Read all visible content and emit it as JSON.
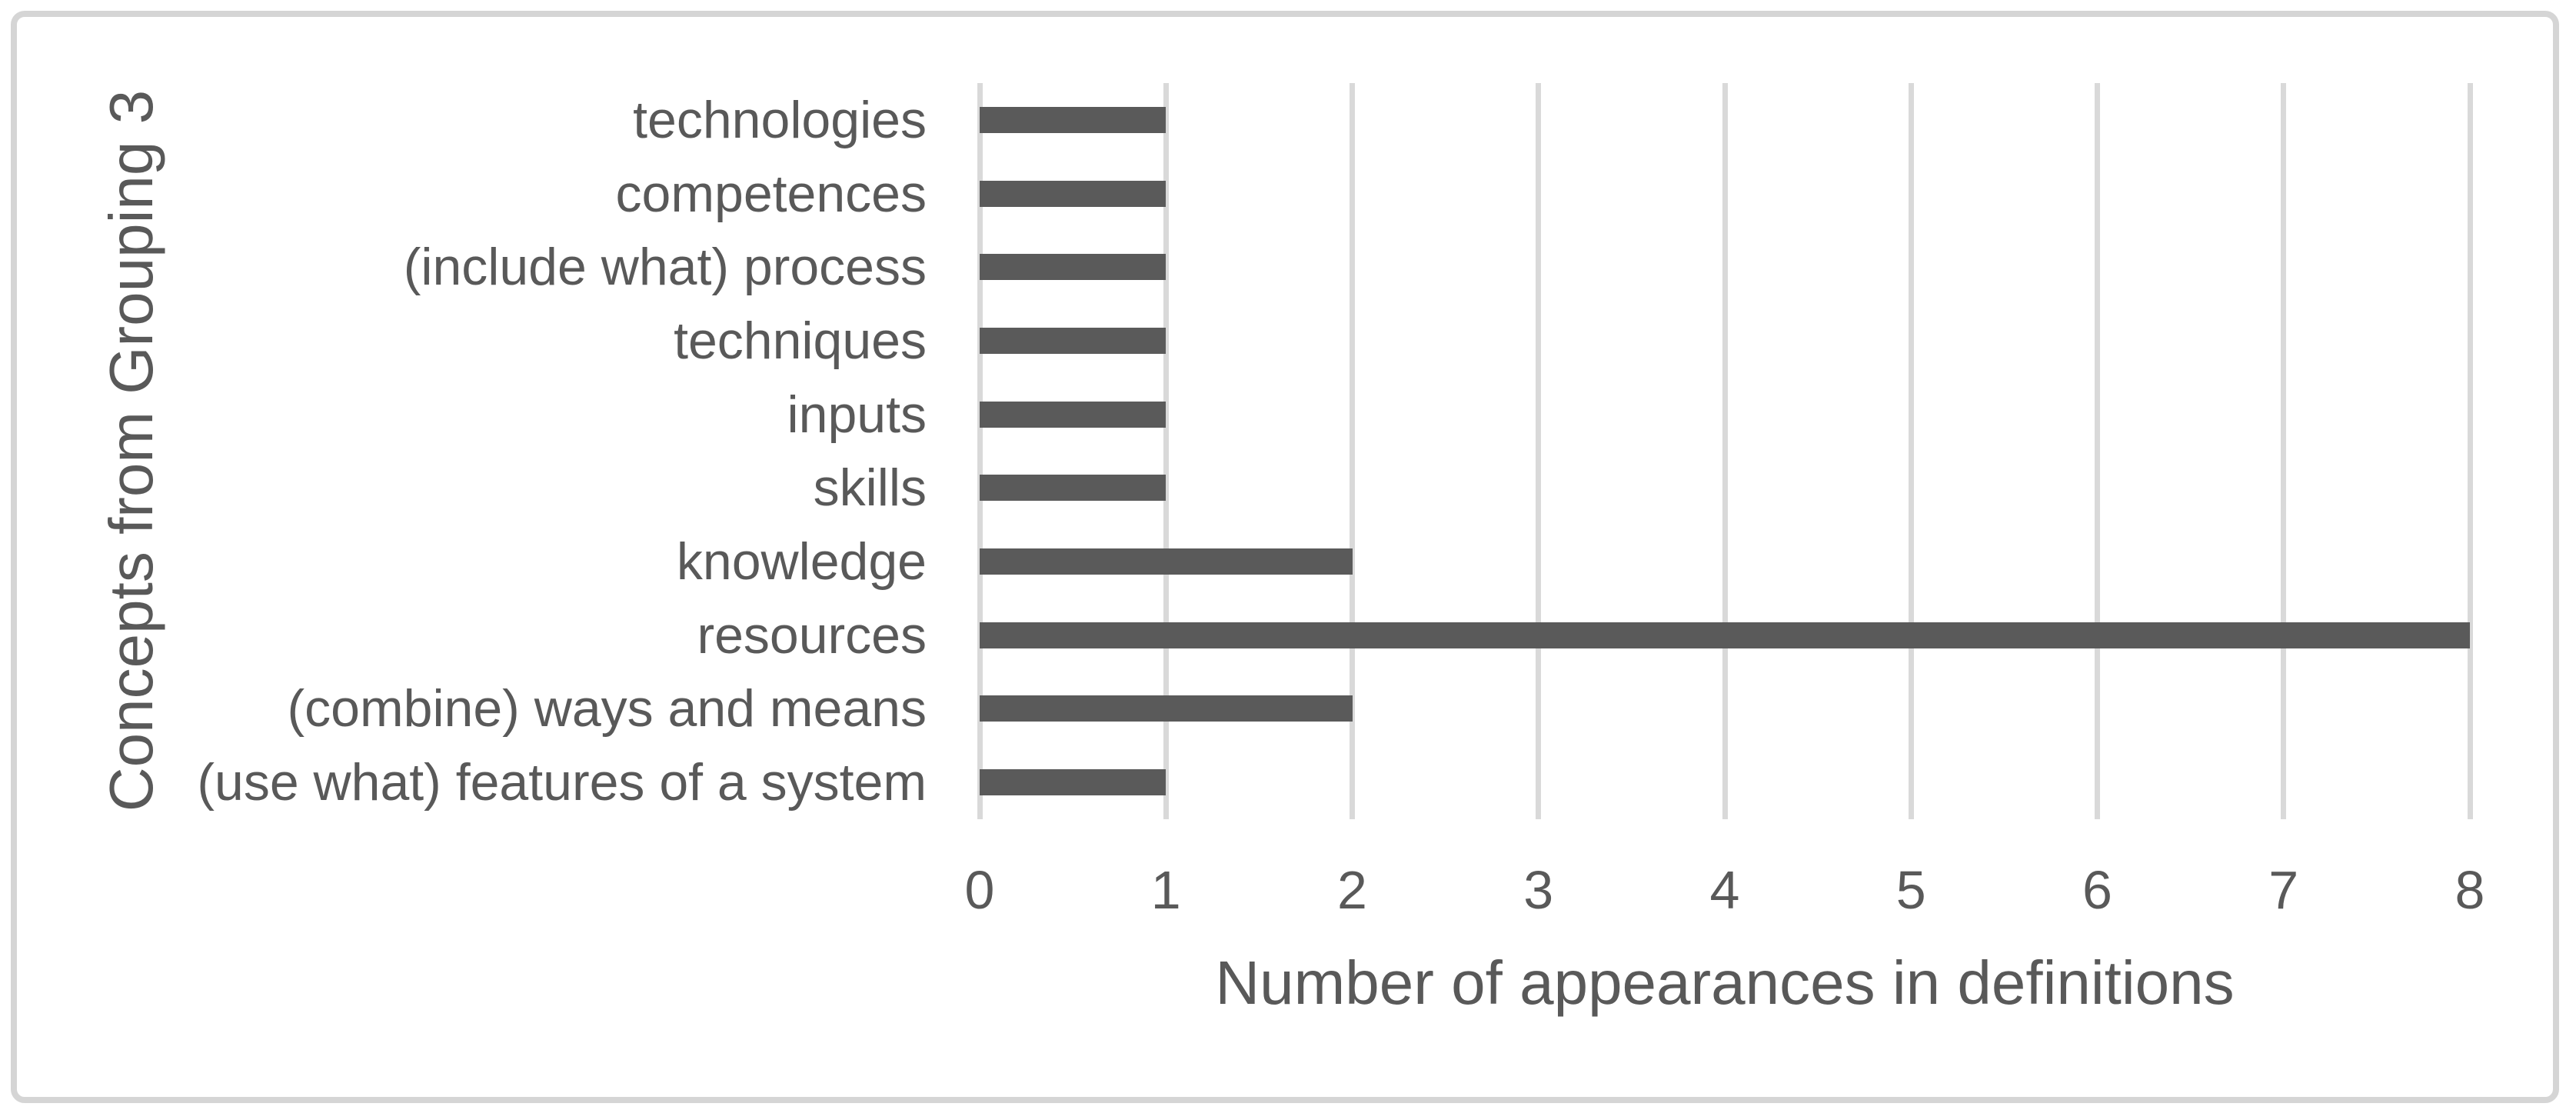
{
  "chart_data": {
    "type": "bar",
    "orientation": "horizontal",
    "title": "",
    "xlabel": "Number of appearances in definitions",
    "ylabel": "Concepts from Grouping 3",
    "categories": [
      "technologies",
      "competences",
      "(include what) process",
      "techniques",
      "inputs",
      "skills",
      "knowledge",
      "resources",
      "(combine) ways and means",
      "(use what) features of a system"
    ],
    "values": [
      1,
      1,
      1,
      1,
      1,
      1,
      2,
      8,
      2,
      1
    ],
    "xlim": [
      0,
      8
    ],
    "xticks": [
      0,
      1,
      2,
      3,
      4,
      5,
      6,
      7,
      8
    ],
    "grid": "vertical gridlines at every integer",
    "legend": "none",
    "colors": {
      "bar": "#5a5a5a",
      "gridline": "#d9d9d9",
      "text": "#595959",
      "frame": "#d5d5d5",
      "background": "#ffffff"
    }
  }
}
